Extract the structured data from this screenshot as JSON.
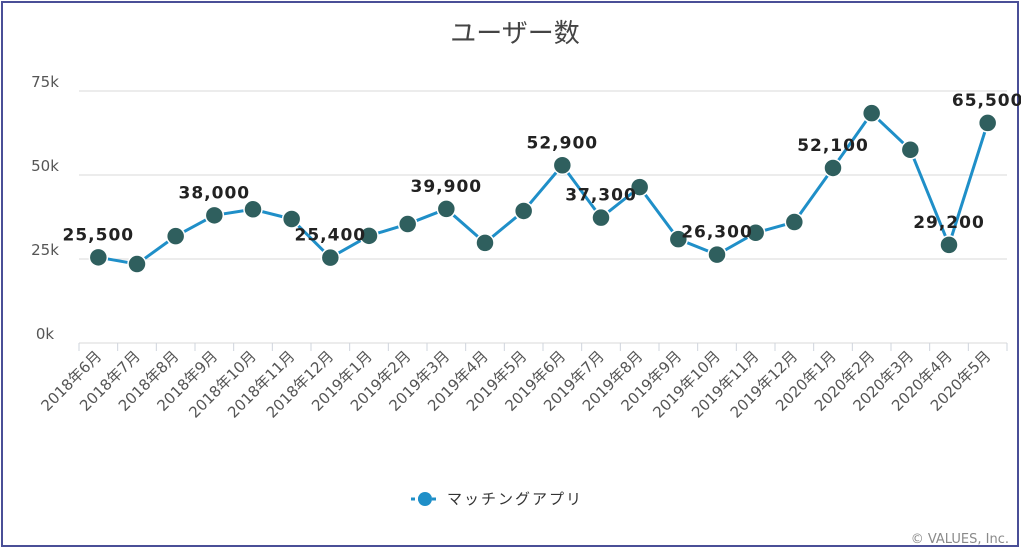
{
  "copyright": "© VALUES, Inc.",
  "colors": {
    "line": "#1f8fc8",
    "marker": "#2f5f5e",
    "grid": "#d9d9d9",
    "frame": "#4a4f97",
    "legend_marker": "#1f8fc8"
  },
  "chart_data": {
    "type": "line",
    "title": "ユーザー数",
    "xlabel": "",
    "ylabel": "",
    "ylim": [
      0,
      75000
    ],
    "yticks": [
      "0k",
      "25k",
      "50k",
      "75k"
    ],
    "grid": true,
    "legend_position": "bottom",
    "categories": [
      "2018年6月",
      "2018年7月",
      "2018年8月",
      "2018年9月",
      "2018年10月",
      "2018年11月",
      "2018年12月",
      "2019年1月",
      "2019年2月",
      "2019年3月",
      "2019年4月",
      "2019年5月",
      "2019年6月",
      "2019年7月",
      "2019年8月",
      "2019年9月",
      "2019年10月",
      "2019年11月",
      "2019年12月",
      "2020年1月",
      "2020年2月",
      "2020年3月",
      "2020年4月",
      "2020年5月"
    ],
    "series": [
      {
        "name": "マッチングアプリ",
        "values": [
          25500,
          23500,
          31800,
          38000,
          39800,
          36900,
          25400,
          31900,
          35400,
          39900,
          29800,
          39300,
          52900,
          37300,
          46400,
          30900,
          26300,
          32800,
          36000,
          52100,
          68400,
          57500,
          29200,
          65500
        ]
      }
    ],
    "data_labels": [
      {
        "index": 0,
        "text": "25,500"
      },
      {
        "index": 3,
        "text": "38,000"
      },
      {
        "index": 6,
        "text": "25,400"
      },
      {
        "index": 9,
        "text": "39,900"
      },
      {
        "index": 12,
        "text": "52,900"
      },
      {
        "index": 13,
        "text": "37,300"
      },
      {
        "index": 16,
        "text": "26,300"
      },
      {
        "index": 19,
        "text": "52,100"
      },
      {
        "index": 22,
        "text": "29,200"
      },
      {
        "index": 23,
        "text": "65,500"
      }
    ]
  }
}
